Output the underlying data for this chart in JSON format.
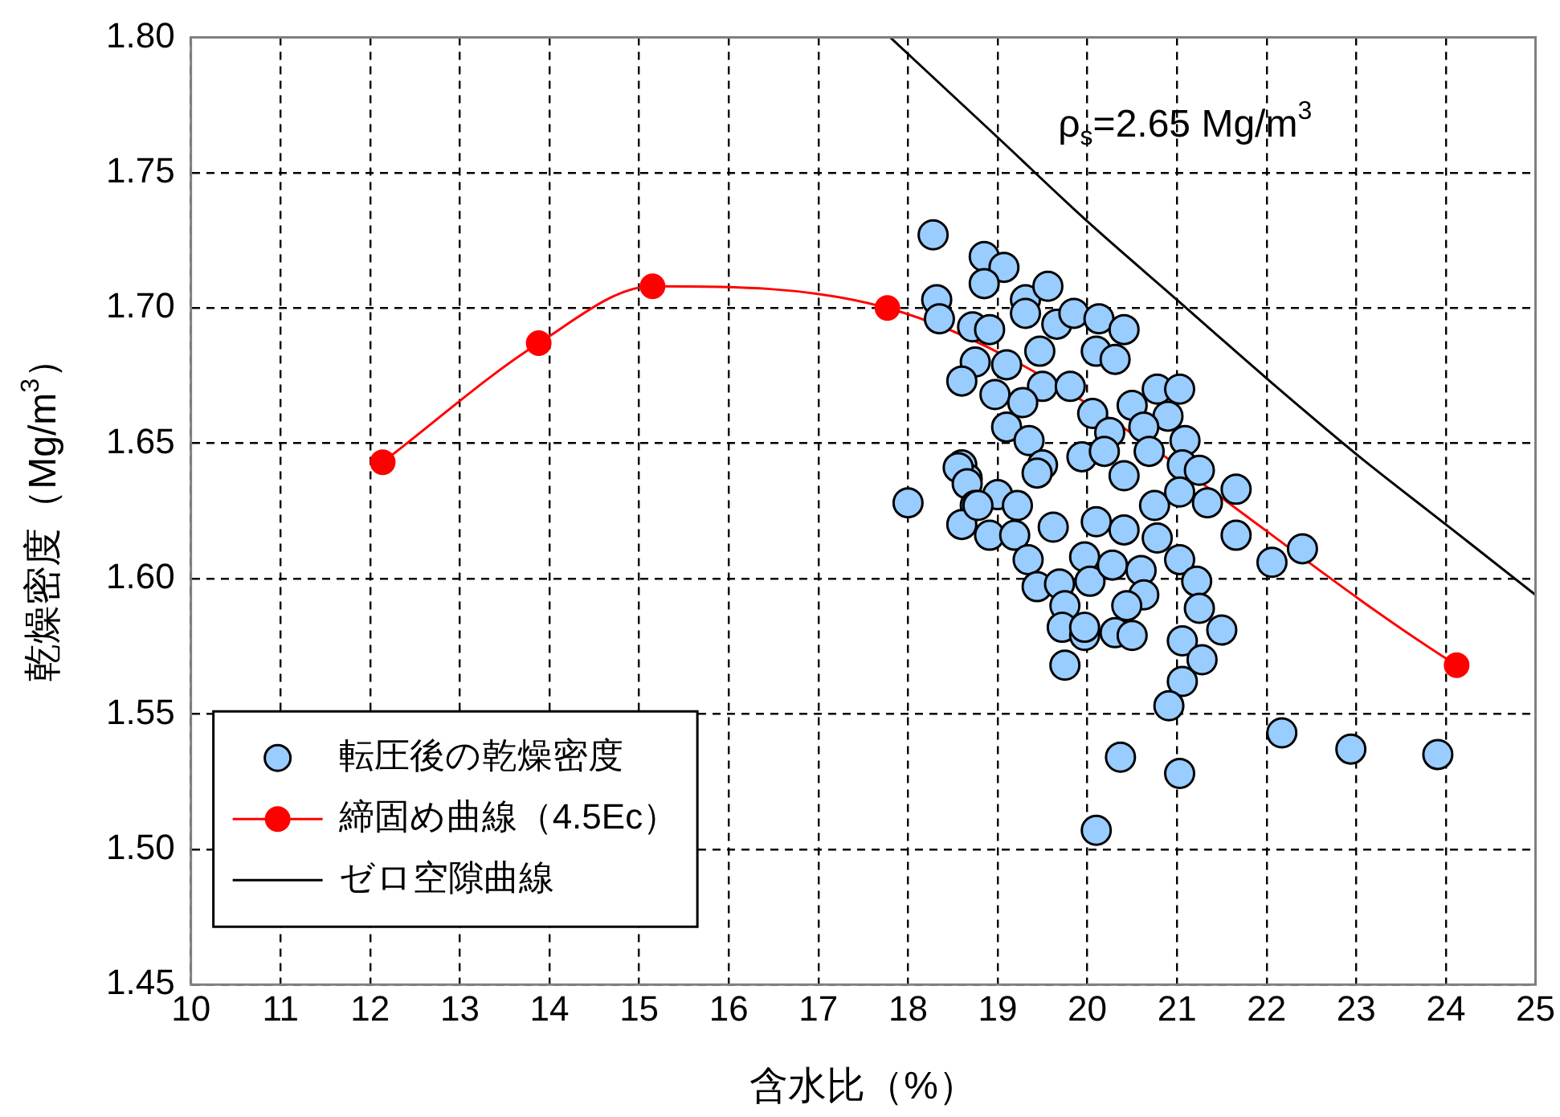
{
  "chart_data": {
    "type": "scatter",
    "xlabel": "含水比（%）",
    "ylabel": "乾燥密度（Mg/m$^{3}$）",
    "xlim": [
      10,
      25
    ],
    "xticks": [
      10,
      11,
      12,
      13,
      14,
      15,
      16,
      17,
      18,
      19,
      20,
      21,
      22,
      23,
      24,
      25
    ],
    "ylim": [
      1.45,
      1.8
    ],
    "yticks": [
      1.45,
      {
        "value": 1.5,
        "label": "1.50"
      },
      1.55,
      {
        "value": 1.6,
        "label": "1.60"
      },
      1.65,
      {
        "value": 1.7,
        "label": "1.70"
      },
      1.75,
      {
        "value": 1.8,
        "label": "1.80"
      }
    ],
    "grid": true,
    "legend": "bottom left",
    "annotations": [
      "ρ$_{s}$=2.65 Mg/m$^{3}$"
    ],
    "series": [
      {
        "name": "転圧後の乾燥密度",
        "marker": "circle",
        "color": "#99ccff",
        "x": [
          18.28,
          18.85,
          19.07,
          18.85,
          18.32,
          18.35,
          18.72,
          18.91,
          19.31,
          19.56,
          19.31,
          19.66,
          19.85,
          20.13,
          20.41,
          18.75,
          18.6,
          19.1,
          19.47,
          20.1,
          20.31,
          18.97,
          19.5,
          19.81,
          19.28,
          20.06,
          20.5,
          20.78,
          21.03,
          20.9,
          19.1,
          19.35,
          20.25,
          20.63,
          21.09,
          19.5,
          19.94,
          20.41,
          18.6,
          18.66,
          21.06,
          21.25,
          21.66,
          18.0,
          18.56,
          18.66,
          18.75,
          18.6,
          18.91,
          19.0,
          19.19,
          19.22,
          18.78,
          19.44,
          19.62,
          19.34,
          19.44,
          19.69,
          19.75,
          19.72,
          19.97,
          19.75,
          19.97,
          20.1,
          19.97,
          20.03,
          20.28,
          20.41,
          20.6,
          20.63,
          20.44,
          20.31,
          20.5,
          20.75,
          20.78,
          21.03,
          21.22,
          21.25,
          21.06,
          21.5,
          21.28,
          21.06,
          20.91,
          21.03,
          21.34,
          21.66,
          22.06,
          20.37,
          21.03,
          20.1,
          22.4,
          22.17,
          22.94,
          23.91,
          20.19,
          20.69
        ],
        "values": [
          1.727,
          1.719,
          1.715,
          1.709,
          1.703,
          1.696,
          1.693,
          1.692,
          1.703,
          1.708,
          1.698,
          1.694,
          1.698,
          1.696,
          1.692,
          1.68,
          1.673,
          1.679,
          1.684,
          1.684,
          1.681,
          1.668,
          1.671,
          1.671,
          1.665,
          1.661,
          1.664,
          1.67,
          1.67,
          1.66,
          1.656,
          1.651,
          1.654,
          1.656,
          1.651,
          1.642,
          1.645,
          1.638,
          1.642,
          1.637,
          1.642,
          1.64,
          1.633,
          1.628,
          1.641,
          1.635,
          1.627,
          1.62,
          1.616,
          1.631,
          1.616,
          1.627,
          1.627,
          1.639,
          1.619,
          1.607,
          1.597,
          1.598,
          1.59,
          1.582,
          1.579,
          1.568,
          1.582,
          1.621,
          1.608,
          1.599,
          1.605,
          1.618,
          1.603,
          1.594,
          1.59,
          1.58,
          1.579,
          1.627,
          1.615,
          1.607,
          1.599,
          1.589,
          1.577,
          1.581,
          1.57,
          1.562,
          1.553,
          1.632,
          1.628,
          1.616,
          1.606,
          1.534,
          1.528,
          1.507,
          1.611,
          1.543,
          1.537,
          1.535,
          1.647,
          1.647
        ]
      },
      {
        "name": "締固め曲線（4.5Ec）",
        "type": "line",
        "marker": "circle",
        "color": "#ff0000",
        "x": [
          12.14,
          13.88,
          15.15,
          17.77,
          24.12
        ],
        "values": [
          1.643,
          1.687,
          1.708,
          1.7,
          1.568
        ]
      },
      {
        "name": "ゼロ空隙曲線",
        "type": "line",
        "marker": "none",
        "color": "#000000",
        "x": [
          17.8,
          19,
          20,
          21,
          22,
          23,
          24,
          25
        ],
        "values": [
          1.8,
          1.763,
          1.732,
          1.703,
          1.674,
          1.646,
          1.62,
          1.594
        ]
      }
    ]
  }
}
